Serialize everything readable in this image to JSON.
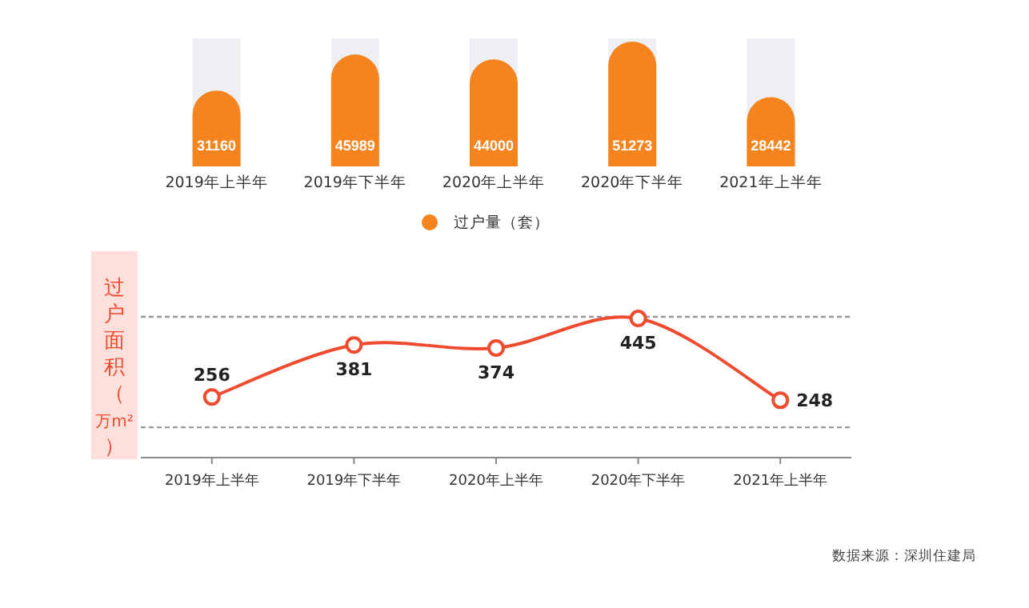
{
  "chart_data": [
    {
      "type": "bar",
      "categories": [
        "2019年上半年",
        "2019年下半年",
        "2020年上半年",
        "2020年下半年",
        "2021年上半年"
      ],
      "series": [
        {
          "name": "过户量（套）",
          "color": "#f5841f",
          "values": [
            31160,
            45989,
            44000,
            51273,
            28442
          ]
        }
      ],
      "ylim": [
        0,
        52600
      ],
      "data_labels": true,
      "legend": "bottom",
      "tick_labels": "x"
    },
    {
      "type": "line",
      "categories": [
        "2019年上半年",
        "2019年下半年",
        "2020年上半年",
        "2020年下半年",
        "2021年上半年"
      ],
      "series": [
        {
          "color": "#ef4b2e",
          "values": [
            256,
            381,
            374,
            445,
            248
          ]
        }
      ],
      "ylabel": "过户面积（万m²）",
      "ylim": [
        110,
        449
      ],
      "ref_lines": [
        {
          "axis": "y",
          "value": 183,
          "line_style": "dotted",
          "color": "#999999"
        },
        {
          "axis": "y",
          "value": 449,
          "line_style": "dotted",
          "color": "#999999"
        }
      ],
      "tick_labels": "x",
      "data_labels": true,
      "marker": "circle",
      "line_style": "solid",
      "annotations": [
        "数据来源：深圳住建局"
      ]
    }
  ]
}
